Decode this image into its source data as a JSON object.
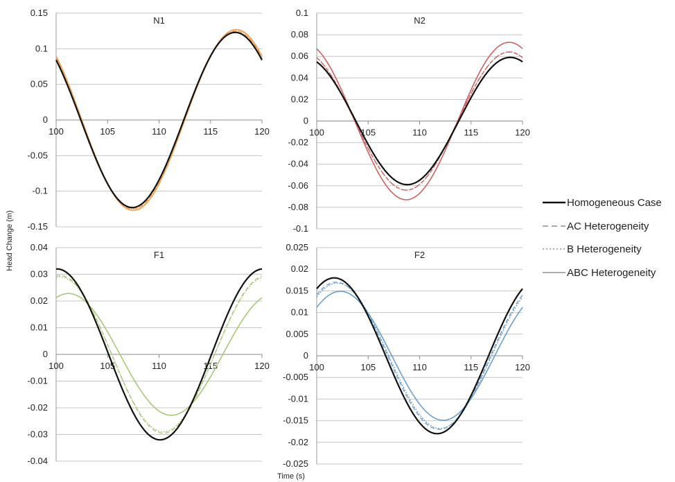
{
  "figure": {
    "ylabel": "Head Change (m)",
    "xlabel": "Time (s)"
  },
  "legend": {
    "position": "right",
    "entries": [
      {
        "label": "Homogeneous Case",
        "style": "solid-thick",
        "color": "#111111"
      },
      {
        "label": "AC Heterogeneity",
        "style": "dashed",
        "color": "#aaaaaa"
      },
      {
        "label": "B Heterogeneity",
        "style": "dotted",
        "color": "#aaaaaa"
      },
      {
        "label": "ABC Heterogeneity",
        "style": "solid",
        "color": "#aaaaaa"
      }
    ]
  },
  "chart_data": [
    {
      "type": "line",
      "title": "N1",
      "accent": "#f0a050",
      "xlim": [
        100,
        120
      ],
      "ylim": [
        -0.15,
        0.15
      ],
      "xticks": [
        "100",
        "105",
        "110",
        "115",
        "120"
      ],
      "yticks": [
        "0.15",
        "0.1",
        "0.05",
        "0",
        "-0.05",
        "-0.1",
        "-0.15"
      ],
      "grid": true,
      "wave_period": 20,
      "series": [
        {
          "name": "Homogeneous Case",
          "amplitude": 0.123,
          "peak_time": 117.4
        },
        {
          "name": "AC Heterogeneity",
          "amplitude": 0.125,
          "peak_time": 117.45
        },
        {
          "name": "B Heterogeneity",
          "amplitude": 0.125,
          "peak_time": 117.5
        },
        {
          "name": "ABC Heterogeneity",
          "amplitude": 0.127,
          "peak_time": 117.5
        }
      ]
    },
    {
      "type": "line",
      "title": "N2",
      "accent": "#d06060",
      "xlim": [
        100,
        120
      ],
      "ylim": [
        -0.1,
        0.1
      ],
      "xticks": [
        "100",
        "105",
        "110",
        "115",
        "120"
      ],
      "yticks": [
        "0.1",
        "0.08",
        "0.06",
        "0.04",
        "0.02",
        "0",
        "-0.02",
        "-0.04",
        "-0.06",
        "-0.08",
        "-0.1"
      ],
      "grid": true,
      "wave_period": 20,
      "series": [
        {
          "name": "Homogeneous Case",
          "amplitude": 0.059,
          "peak_time": 118.8
        },
        {
          "name": "AC Heterogeneity",
          "amplitude": 0.064,
          "peak_time": 118.7
        },
        {
          "name": "B Heterogeneity",
          "amplitude": 0.064,
          "peak_time": 118.7
        },
        {
          "name": "ABC Heterogeneity",
          "amplitude": 0.073,
          "peak_time": 118.7
        }
      ]
    },
    {
      "type": "line",
      "title": "F1",
      "accent": "#a8c878",
      "xlim": [
        100,
        120
      ],
      "ylim": [
        -0.04,
        0.04
      ],
      "xticks": [
        "100",
        "105",
        "110",
        "115",
        "120"
      ],
      "yticks": [
        "0.04",
        "0.03",
        "0.02",
        "0.01",
        "0",
        "-0.01",
        "-0.02",
        "-0.03",
        "-0.04"
      ],
      "grid": true,
      "wave_period": 20,
      "series": [
        {
          "name": "Homogeneous Case",
          "amplitude": 0.032,
          "peak_time": 100.1
        },
        {
          "name": "AC Heterogeneity",
          "amplitude": 0.0295,
          "peak_time": 100.4
        },
        {
          "name": "B Heterogeneity",
          "amplitude": 0.029,
          "peak_time": 100.4
        },
        {
          "name": "ABC Heterogeneity",
          "amplitude": 0.0228,
          "peak_time": 101.2
        }
      ]
    },
    {
      "type": "line",
      "title": "F2",
      "accent": "#6a9fd0",
      "xlim": [
        100,
        120
      ],
      "ylim": [
        -0.025,
        0.025
      ],
      "xticks": [
        "100",
        "105",
        "110",
        "115",
        "120"
      ],
      "yticks": [
        "0.025",
        "0.02",
        "0.015",
        "0.01",
        "0.005",
        "0",
        "-0.005",
        "-0.01",
        "-0.015",
        "-0.02",
        "-0.025"
      ],
      "grid": true,
      "wave_period": 20,
      "series": [
        {
          "name": "Homogeneous Case",
          "amplitude": 0.018,
          "peak_time": 101.7
        },
        {
          "name": "AC Heterogeneity",
          "amplitude": 0.017,
          "peak_time": 101.9
        },
        {
          "name": "B Heterogeneity",
          "amplitude": 0.0168,
          "peak_time": 102.0
        },
        {
          "name": "ABC Heterogeneity",
          "amplitude": 0.0149,
          "peak_time": 102.3
        }
      ]
    }
  ]
}
